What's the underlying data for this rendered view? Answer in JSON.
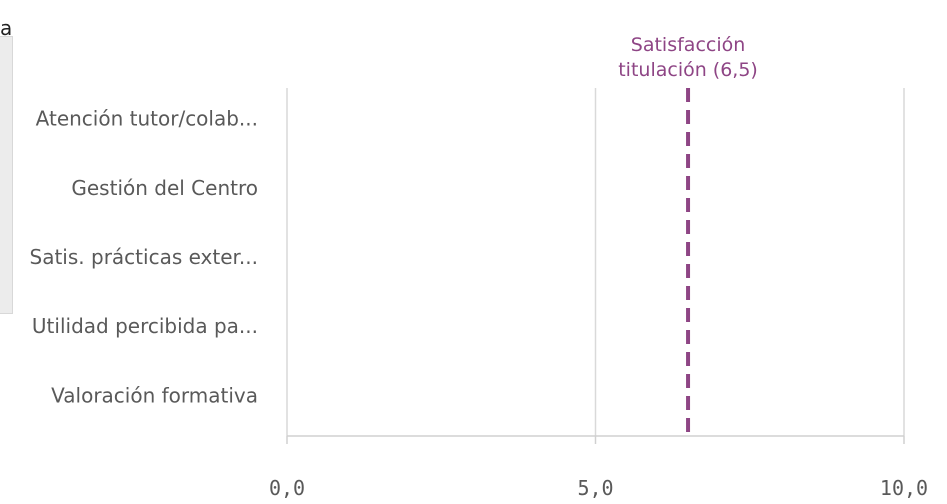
{
  "partial_char": "a",
  "chart_data": {
    "type": "bar",
    "orientation": "horizontal",
    "categories": [
      "Atención tutor/colab...",
      "Gestión del Centro",
      "Satis. prácticas exter...",
      "Utilidad percibida pa...",
      "Valoración formativa"
    ],
    "values": [
      null,
      null,
      null,
      null,
      null
    ],
    "xlim": [
      0,
      10
    ],
    "x_ticks": [
      0,
      5,
      10
    ],
    "x_tick_labels": [
      "0,0",
      "5,0",
      "10,0"
    ],
    "grid": true,
    "reference_line": {
      "value": 6.5,
      "label_lines": [
        "Satisfacción",
        "titulación (6,5)"
      ],
      "color": "#8e4585",
      "style": "dashed"
    },
    "colors": {
      "grid": "#d9d9d9",
      "axis": "#d0d0d0",
      "text": "#595959"
    }
  }
}
